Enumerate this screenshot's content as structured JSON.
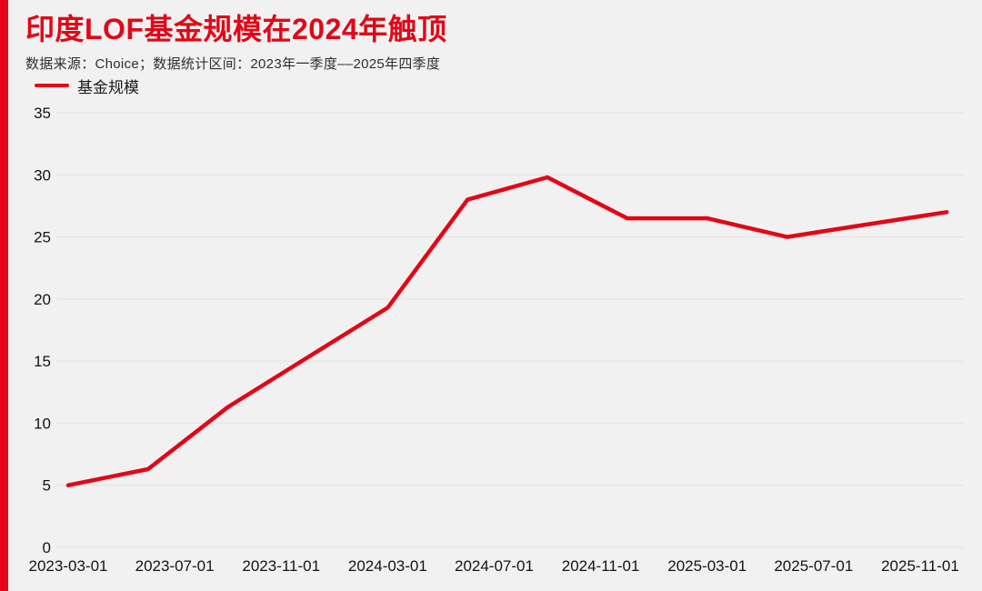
{
  "page": {
    "background": "#f1f1f1",
    "accent_bar_color": "#e30617"
  },
  "header": {
    "title": "印度LOF基金规模在2024年触顶",
    "subtitle": "数据来源：Choice；数据统计区间：2023年一季度––2025年四季度"
  },
  "legend": {
    "items": [
      {
        "label": "基金规模",
        "color": "#e30617"
      }
    ]
  },
  "chart_data": {
    "type": "line",
    "title": "印度LOF基金规模在2024年触顶",
    "subtitle": "数据来源：Choice；数据统计区间：2023年一季度––2025年四季度",
    "xlabel": "",
    "ylabel": "",
    "ylim": [
      0,
      35
    ],
    "grid": "horizontal",
    "legend_position": "top-left",
    "y_ticks": [
      0,
      5,
      10,
      15,
      20,
      25,
      30,
      35
    ],
    "x_tick_labels": [
      "2023-03-01",
      "2023-07-01",
      "2023-11-01",
      "2024-03-01",
      "2024-07-01",
      "2024-11-01",
      "2025-03-01",
      "2025-07-01",
      "2025-11-01"
    ],
    "series": [
      {
        "name": "基金规模",
        "color": "#e30617",
        "x": [
          "2023-03",
          "2023-06",
          "2023-09",
          "2023-12",
          "2024-03",
          "2024-06",
          "2024-09",
          "2024-12",
          "2025-03",
          "2025-06",
          "2025-09",
          "2025-12"
        ],
        "values": [
          5.0,
          6.3,
          11.3,
          15.3,
          19.3,
          28.0,
          29.8,
          26.5,
          26.5,
          25.0,
          26.0,
          27.0
        ]
      }
    ]
  }
}
